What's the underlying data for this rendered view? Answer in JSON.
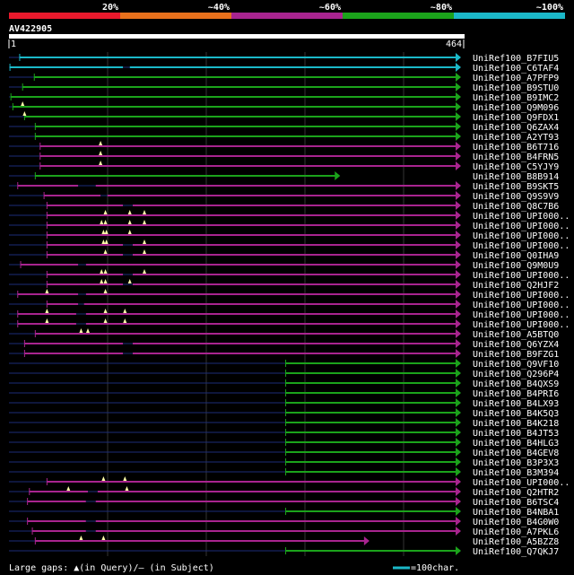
{
  "identity_bar": {
    "segments": [
      {
        "label": "20%",
        "color": "#e8192c"
      },
      {
        "label": "~40%",
        "color": "#e8711c"
      },
      {
        "label": "~60%",
        "color": "#a8248f"
      },
      {
        "label": "~80%",
        "color": "#1ba31b"
      },
      {
        "label": "~100%",
        "color": "#1bb8c8"
      }
    ]
  },
  "query": {
    "name": "AV422905",
    "start": "1",
    "end": "464",
    "length": 464
  },
  "colors": {
    "cyan": "#1bb8c8",
    "green": "#1ba31b",
    "purple": "#a8248f",
    "gap": "#1c2c78",
    "grid": "#333333"
  },
  "hits": [
    {
      "name": "UniRef100_B7FIU5",
      "start": 12,
      "end": 464,
      "color": "cyan",
      "gaps": []
    },
    {
      "name": "UniRef100_C6TAF4",
      "start": 2,
      "end": 464,
      "color": "cyan",
      "gaps": [
        [
          118,
          125
        ]
      ]
    },
    {
      "name": "UniRef100_A7PFP9",
      "start": 27,
      "end": 464,
      "color": "green",
      "gaps": []
    },
    {
      "name": "UniRef100_B9STU0",
      "start": 15,
      "end": 464,
      "color": "green",
      "gaps": []
    },
    {
      "name": "UniRef100_B9IMC2",
      "start": 3,
      "end": 464,
      "color": "green",
      "gaps": []
    },
    {
      "name": "UniRef100_Q9M096",
      "start": 5,
      "end": 464,
      "color": "green",
      "gaps": [],
      "qgaps": [
        15
      ]
    },
    {
      "name": "UniRef100_Q9FDX1",
      "start": 17,
      "end": 464,
      "color": "green",
      "gaps": [],
      "qgaps": [
        17
      ]
    },
    {
      "name": "UniRef100_Q6ZAX4",
      "start": 28,
      "end": 464,
      "color": "green",
      "gaps": []
    },
    {
      "name": "UniRef100_A2YT93",
      "start": 28,
      "end": 464,
      "color": "green",
      "gaps": []
    },
    {
      "name": "UniRef100_B6T716",
      "start": 33,
      "end": 464,
      "color": "purple",
      "gaps": [],
      "qgaps": [
        95
      ]
    },
    {
      "name": "UniRef100_B4FRN5",
      "start": 33,
      "end": 464,
      "color": "purple",
      "gaps": [],
      "qgaps": [
        95
      ]
    },
    {
      "name": "UniRef100_C5YJY9",
      "start": 33,
      "end": 464,
      "color": "purple",
      "gaps": [],
      "qgaps": [
        95
      ]
    },
    {
      "name": "UniRef100_B8B914",
      "start": 28,
      "end": 340,
      "color": "green",
      "gaps": []
    },
    {
      "name": "UniRef100_B9SKT5",
      "start": 10,
      "end": 464,
      "color": "purple",
      "gaps": [
        [
          72,
          90
        ]
      ]
    },
    {
      "name": "UniRef100_Q9S9V9",
      "start": 37,
      "end": 464,
      "color": "purple",
      "gaps": [
        [
          95,
          102
        ]
      ]
    },
    {
      "name": "UniRef100_Q8C7B6",
      "start": 40,
      "end": 464,
      "color": "purple",
      "gaps": [
        [
          118,
          128
        ]
      ]
    },
    {
      "name": "UniRef100_UPI000..",
      "start": 40,
      "end": 464,
      "color": "purple",
      "gaps": [],
      "qgaps": [
        100,
        125,
        140
      ]
    },
    {
      "name": "UniRef100_UPI000..",
      "start": 40,
      "end": 464,
      "color": "purple",
      "gaps": [],
      "qgaps": [
        96,
        100,
        125,
        140
      ]
    },
    {
      "name": "UniRef100_UPI000..",
      "start": 40,
      "end": 464,
      "color": "purple",
      "gaps": [],
      "qgaps": [
        98,
        101,
        125
      ]
    },
    {
      "name": "UniRef100_UPI000..",
      "start": 40,
      "end": 464,
      "color": "purple",
      "gaps": [
        [
          118,
          128
        ]
      ],
      "qgaps": [
        98,
        101,
        140
      ]
    },
    {
      "name": "UniRef100_Q0IHA9",
      "start": 40,
      "end": 464,
      "color": "purple",
      "gaps": [
        [
          118,
          128
        ]
      ],
      "qgaps": [
        100,
        140
      ]
    },
    {
      "name": "UniRef100_Q9M0U9",
      "start": 13,
      "end": 464,
      "color": "purple",
      "gaps": [
        [
          72,
          80
        ]
      ]
    },
    {
      "name": "UniRef100_UPI000..",
      "start": 40,
      "end": 464,
      "color": "purple",
      "gaps": [
        [
          118,
          128
        ]
      ],
      "qgaps": [
        96,
        100,
        140
      ]
    },
    {
      "name": "UniRef100_Q2HJF2",
      "start": 40,
      "end": 464,
      "color": "purple",
      "gaps": [
        [
          118,
          128
        ]
      ],
      "qgaps": [
        96,
        100,
        125
      ]
    },
    {
      "name": "UniRef100_UPI000..",
      "start": 10,
      "end": 464,
      "color": "purple",
      "gaps": [
        [
          72,
          80
        ]
      ],
      "qgaps": [
        40,
        100
      ]
    },
    {
      "name": "UniRef100_UPI000..",
      "start": 40,
      "end": 464,
      "color": "purple",
      "gaps": [
        [
          72,
          78
        ]
      ],
      "qgaps": []
    },
    {
      "name": "UniRef100_UPI000..",
      "start": 10,
      "end": 464,
      "color": "purple",
      "gaps": [
        [
          70,
          80
        ]
      ],
      "qgaps": [
        40,
        100,
        120
      ]
    },
    {
      "name": "UniRef100_UPI000..",
      "start": 10,
      "end": 464,
      "color": "purple",
      "gaps": [
        [
          70,
          80
        ]
      ],
      "qgaps": [
        40,
        100,
        120
      ]
    },
    {
      "name": "UniRef100_A5BTQ0",
      "start": 28,
      "end": 464,
      "color": "purple",
      "gaps": [],
      "qgaps": [
        75,
        82
      ]
    },
    {
      "name": "UniRef100_Q6YZX4",
      "start": 17,
      "end": 464,
      "color": "purple",
      "gaps": [
        [
          118,
          128
        ]
      ]
    },
    {
      "name": "UniRef100_B9FZG1",
      "start": 17,
      "end": 464,
      "color": "purple",
      "gaps": [
        [
          118,
          128
        ]
      ]
    },
    {
      "name": "UniRef100_Q9VF10",
      "start": 285,
      "end": 464,
      "color": "green",
      "gaps": []
    },
    {
      "name": "UniRef100_Q296P4",
      "start": 285,
      "end": 464,
      "color": "green",
      "gaps": []
    },
    {
      "name": "UniRef100_B4QXS9",
      "start": 285,
      "end": 464,
      "color": "green",
      "gaps": []
    },
    {
      "name": "UniRef100_B4PRI6",
      "start": 285,
      "end": 464,
      "color": "green",
      "gaps": []
    },
    {
      "name": "UniRef100_B4LX93",
      "start": 285,
      "end": 464,
      "color": "green",
      "gaps": []
    },
    {
      "name": "UniRef100_B4K5Q3",
      "start": 285,
      "end": 464,
      "color": "green",
      "gaps": []
    },
    {
      "name": "UniRef100_B4K218",
      "start": 285,
      "end": 464,
      "color": "green",
      "gaps": []
    },
    {
      "name": "UniRef100_B4JT53",
      "start": 285,
      "end": 464,
      "color": "green",
      "gaps": []
    },
    {
      "name": "UniRef100_B4HLG3",
      "start": 285,
      "end": 464,
      "color": "green",
      "gaps": []
    },
    {
      "name": "UniRef100_B4GEV8",
      "start": 285,
      "end": 464,
      "color": "green",
      "gaps": []
    },
    {
      "name": "UniRef100_B3P3X3",
      "start": 285,
      "end": 464,
      "color": "green",
      "gaps": []
    },
    {
      "name": "UniRef100_B3M394",
      "start": 285,
      "end": 464,
      "color": "green",
      "gaps": []
    },
    {
      "name": "UniRef100_UPI000..",
      "start": 40,
      "end": 464,
      "color": "purple",
      "gaps": [],
      "qgaps": [
        98,
        120
      ]
    },
    {
      "name": "UniRef100_Q2HTR2",
      "start": 22,
      "end": 464,
      "color": "purple",
      "gaps": [
        [
          82,
          92
        ]
      ],
      "qgaps": [
        62,
        122
      ]
    },
    {
      "name": "UniRef100_B6TSC4",
      "start": 20,
      "end": 464,
      "color": "purple",
      "gaps": [
        [
          80,
          90
        ]
      ]
    },
    {
      "name": "UniRef100_B4NBA1",
      "start": 285,
      "end": 464,
      "color": "green",
      "gaps": []
    },
    {
      "name": "UniRef100_B4G0W0",
      "start": 20,
      "end": 464,
      "color": "purple",
      "gaps": [
        [
          80,
          90
        ]
      ]
    },
    {
      "name": "UniRef100_A7PKL6",
      "start": 25,
      "end": 464,
      "color": "purple",
      "gaps": [
        [
          80,
          90
        ]
      ]
    },
    {
      "name": "UniRef100_A5BZZ8",
      "start": 28,
      "end": 370,
      "color": "purple",
      "gaps": [],
      "qgaps": [
        75,
        98
      ]
    },
    {
      "name": "UniRef100_Q7QKJ7",
      "start": 285,
      "end": 464,
      "color": "green",
      "gaps": []
    }
  ],
  "legend": {
    "gaps_text": "Large gaps: ▲(in Query)/– (in Subject)",
    "scale_text": "=100char."
  }
}
